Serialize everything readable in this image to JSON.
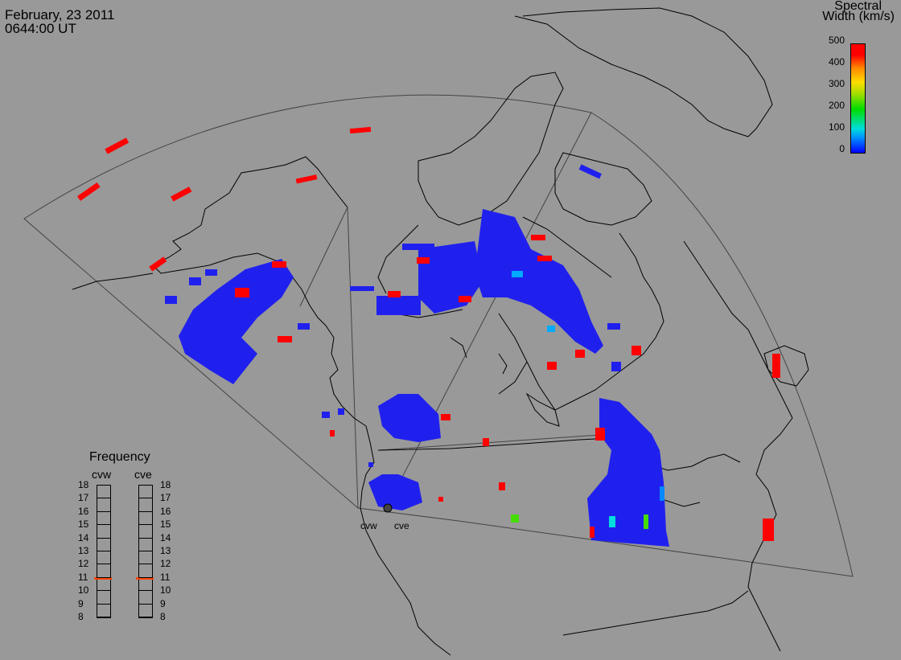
{
  "header": {
    "date": "February, 23 2011",
    "time": "0644:00 UT"
  },
  "colorbar": {
    "title_line1": "Spectral",
    "title_line2": "Width (km/s)",
    "ticks": [
      "500",
      "400",
      "300",
      "200",
      "100",
      "0"
    ],
    "colors": {
      "low": "#0000ff",
      "mid": "#00dd00",
      "high": "#ff0000"
    }
  },
  "frequency": {
    "title": "Frequency",
    "radars": [
      {
        "name": "cvw",
        "selected_mhz": 10.9
      },
      {
        "name": "cve",
        "selected_mhz": 10.9
      }
    ],
    "scale": [
      "18",
      "17",
      "16",
      "15",
      "14",
      "13",
      "12",
      "11",
      "10",
      "9",
      "8"
    ]
  },
  "sites": {
    "west": "cvw",
    "east": "cve"
  },
  "colors": {
    "background": "#999999",
    "scatter_blue": "#2020ee",
    "scatter_red": "#ff0000"
  }
}
